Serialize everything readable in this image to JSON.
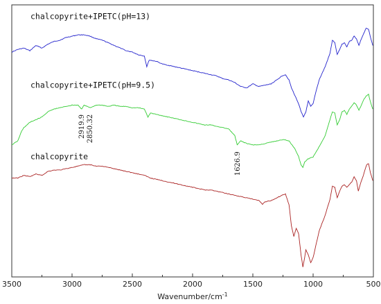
{
  "chart_data": {
    "type": "line",
    "title": "",
    "xlabel": "Wavenumber/cm",
    "xlabel_superscript": "-1",
    "ylabel": "",
    "xlim": [
      3500,
      500
    ],
    "x_reversed": true,
    "xticks": [
      3500,
      3000,
      2500,
      2000,
      1500,
      1000,
      500
    ],
    "ylim": [
      0,
      100
    ],
    "grid": false,
    "legend": "none",
    "series": [
      {
        "name": "chalcopyrite+IPETC(pH=13)",
        "color": "#2222cc",
        "points": [
          [
            3500,
            83.5
          ],
          [
            3450,
            84.5
          ],
          [
            3400,
            85
          ],
          [
            3350,
            84
          ],
          [
            3300,
            86
          ],
          [
            3250,
            85
          ],
          [
            3200,
            86.5
          ],
          [
            3150,
            87.5
          ],
          [
            3100,
            88
          ],
          [
            3050,
            89
          ],
          [
            3000,
            89.5
          ],
          [
            2950,
            90
          ],
          [
            2900,
            90
          ],
          [
            2850,
            89.5
          ],
          [
            2800,
            88.5
          ],
          [
            2750,
            88
          ],
          [
            2700,
            87
          ],
          [
            2650,
            86
          ],
          [
            2600,
            85
          ],
          [
            2550,
            84
          ],
          [
            2500,
            83.5
          ],
          [
            2450,
            82.5
          ],
          [
            2400,
            82
          ],
          [
            2380,
            78
          ],
          [
            2360,
            80.5
          ],
          [
            2300,
            80
          ],
          [
            2250,
            79
          ],
          [
            2200,
            78.5
          ],
          [
            2150,
            78
          ],
          [
            2100,
            77.5
          ],
          [
            2050,
            77
          ],
          [
            2000,
            76.5
          ],
          [
            1950,
            76
          ],
          [
            1900,
            75.5
          ],
          [
            1850,
            75
          ],
          [
            1800,
            74.5
          ],
          [
            1750,
            73.5
          ],
          [
            1700,
            73
          ],
          [
            1650,
            72
          ],
          [
            1600,
            70.5
          ],
          [
            1550,
            70
          ],
          [
            1500,
            71.5
          ],
          [
            1450,
            70.5
          ],
          [
            1400,
            71
          ],
          [
            1350,
            71.5
          ],
          [
            1300,
            73
          ],
          [
            1260,
            74.5
          ],
          [
            1230,
            75
          ],
          [
            1200,
            73
          ],
          [
            1180,
            70
          ],
          [
            1150,
            67
          ],
          [
            1120,
            64
          ],
          [
            1100,
            61
          ],
          [
            1080,
            59
          ],
          [
            1060,
            61
          ],
          [
            1040,
            65
          ],
          [
            1020,
            63
          ],
          [
            1000,
            64
          ],
          [
            980,
            68
          ],
          [
            950,
            73
          ],
          [
            900,
            78
          ],
          [
            860,
            83
          ],
          [
            840,
            88
          ],
          [
            820,
            87
          ],
          [
            800,
            82.5
          ],
          [
            780,
            84.5
          ],
          [
            760,
            86.5
          ],
          [
            740,
            87
          ],
          [
            720,
            85.5
          ],
          [
            700,
            87.5
          ],
          [
            680,
            88
          ],
          [
            660,
            89.5
          ],
          [
            640,
            88.5
          ],
          [
            620,
            86
          ],
          [
            600,
            88.5
          ],
          [
            580,
            90.5
          ],
          [
            560,
            92.5
          ],
          [
            540,
            92
          ],
          [
            520,
            88.5
          ],
          [
            505,
            86
          ]
        ]
      },
      {
        "name": "chalcopyrite+IPETC(pH=9.5)",
        "color": "#33cc33",
        "points": [
          [
            3500,
            48.5
          ],
          [
            3450,
            50
          ],
          [
            3420,
            53.5
          ],
          [
            3400,
            55
          ],
          [
            3350,
            57
          ],
          [
            3300,
            58
          ],
          [
            3250,
            59
          ],
          [
            3200,
            61
          ],
          [
            3150,
            62
          ],
          [
            3100,
            62.5
          ],
          [
            3050,
            63
          ],
          [
            3000,
            63.5
          ],
          [
            2950,
            63.5
          ],
          [
            2920,
            62
          ],
          [
            2900,
            63.5
          ],
          [
            2850,
            62.5
          ],
          [
            2800,
            63.5
          ],
          [
            2750,
            63.5
          ],
          [
            2700,
            63
          ],
          [
            2650,
            63.5
          ],
          [
            2600,
            63
          ],
          [
            2550,
            63
          ],
          [
            2500,
            62.5
          ],
          [
            2450,
            62.5
          ],
          [
            2400,
            62
          ],
          [
            2370,
            59
          ],
          [
            2350,
            60.5
          ],
          [
            2300,
            60
          ],
          [
            2250,
            59.5
          ],
          [
            2200,
            59
          ],
          [
            2150,
            58.5
          ],
          [
            2100,
            58
          ],
          [
            2050,
            57.5
          ],
          [
            2000,
            57
          ],
          [
            1950,
            56.5
          ],
          [
            1900,
            56
          ],
          [
            1850,
            56
          ],
          [
            1800,
            55.5
          ],
          [
            1750,
            55
          ],
          [
            1700,
            54.5
          ],
          [
            1650,
            52
          ],
          [
            1630,
            48.5
          ],
          [
            1600,
            50
          ],
          [
            1550,
            49
          ],
          [
            1500,
            48.5
          ],
          [
            1450,
            48.5
          ],
          [
            1400,
            49
          ],
          [
            1350,
            49.5
          ],
          [
            1300,
            50
          ],
          [
            1250,
            50.5
          ],
          [
            1200,
            50
          ],
          [
            1150,
            47
          ],
          [
            1120,
            44
          ],
          [
            1100,
            41
          ],
          [
            1085,
            40
          ],
          [
            1070,
            42
          ],
          [
            1050,
            43
          ],
          [
            1000,
            44
          ],
          [
            960,
            47
          ],
          [
            900,
            52
          ],
          [
            860,
            58
          ],
          [
            840,
            61
          ],
          [
            820,
            60.5
          ],
          [
            800,
            56
          ],
          [
            780,
            58
          ],
          [
            760,
            61
          ],
          [
            740,
            61.5
          ],
          [
            720,
            60
          ],
          [
            700,
            62
          ],
          [
            680,
            63
          ],
          [
            660,
            64.5
          ],
          [
            640,
            63.5
          ],
          [
            620,
            61.5
          ],
          [
            600,
            63.5
          ],
          [
            580,
            65.5
          ],
          [
            560,
            67
          ],
          [
            540,
            67.5
          ],
          [
            520,
            64
          ],
          [
            505,
            62
          ]
        ]
      },
      {
        "name": "chalcopyrite",
        "color": "#aa2222",
        "points": [
          [
            3500,
            36
          ],
          [
            3450,
            36
          ],
          [
            3400,
            37
          ],
          [
            3350,
            36.5
          ],
          [
            3300,
            37.5
          ],
          [
            3250,
            37
          ],
          [
            3200,
            38.5
          ],
          [
            3150,
            39
          ],
          [
            3100,
            39
          ],
          [
            3050,
            39.5
          ],
          [
            3000,
            40
          ],
          [
            2950,
            40.5
          ],
          [
            2900,
            41
          ],
          [
            2850,
            41
          ],
          [
            2800,
            40.5
          ],
          [
            2750,
            40.5
          ],
          [
            2700,
            40
          ],
          [
            2650,
            39.5
          ],
          [
            2600,
            39
          ],
          [
            2550,
            38.5
          ],
          [
            2500,
            38
          ],
          [
            2450,
            37.5
          ],
          [
            2400,
            37
          ],
          [
            2350,
            36
          ],
          [
            2300,
            35.5
          ],
          [
            2250,
            35
          ],
          [
            2200,
            34.5
          ],
          [
            2150,
            34
          ],
          [
            2100,
            33.5
          ],
          [
            2050,
            33
          ],
          [
            2000,
            32.5
          ],
          [
            1950,
            32
          ],
          [
            1900,
            31.5
          ],
          [
            1850,
            31.5
          ],
          [
            1800,
            31
          ],
          [
            1750,
            30.5
          ],
          [
            1700,
            30
          ],
          [
            1650,
            29.5
          ],
          [
            1600,
            29
          ],
          [
            1550,
            28.5
          ],
          [
            1500,
            28
          ],
          [
            1450,
            27.5
          ],
          [
            1420,
            26
          ],
          [
            1400,
            27
          ],
          [
            1350,
            27.5
          ],
          [
            1300,
            28.5
          ],
          [
            1260,
            29.5
          ],
          [
            1230,
            30
          ],
          [
            1200,
            26
          ],
          [
            1180,
            18
          ],
          [
            1160,
            14
          ],
          [
            1140,
            17
          ],
          [
            1120,
            15
          ],
          [
            1100,
            7
          ],
          [
            1085,
            2.5
          ],
          [
            1070,
            6
          ],
          [
            1060,
            9
          ],
          [
            1040,
            7
          ],
          [
            1020,
            4
          ],
          [
            1000,
            6
          ],
          [
            980,
            10
          ],
          [
            950,
            16
          ],
          [
            900,
            22
          ],
          [
            860,
            28
          ],
          [
            840,
            33
          ],
          [
            820,
            32.5
          ],
          [
            800,
            28.5
          ],
          [
            780,
            31
          ],
          [
            760,
            33
          ],
          [
            740,
            33.5
          ],
          [
            720,
            32.5
          ],
          [
            700,
            33.5
          ],
          [
            680,
            34.5
          ],
          [
            660,
            36.5
          ],
          [
            640,
            35
          ],
          [
            625,
            31
          ],
          [
            610,
            33.5
          ],
          [
            590,
            36
          ],
          [
            570,
            39
          ],
          [
            555,
            41
          ],
          [
            540,
            41.5
          ],
          [
            525,
            38
          ],
          [
            505,
            35
          ]
        ]
      }
    ],
    "annotations": [
      {
        "text": "chalcopyrite+IPETC(pH=13)",
        "x": 3500,
        "y": 96
      },
      {
        "text": "chalcopyrite+IPETC(pH=9.5)",
        "x": 3500,
        "y": 70
      },
      {
        "text": "chalcopyrite",
        "x": 3500,
        "y": 43
      }
    ],
    "peak_labels": [
      {
        "text": "2919.9",
        "x": 2919.9,
        "y": 60
      },
      {
        "text": "2850.32",
        "x": 2850.32,
        "y": 60
      },
      {
        "text": "1626.9",
        "x": 1626.9,
        "y": 46
      }
    ]
  }
}
